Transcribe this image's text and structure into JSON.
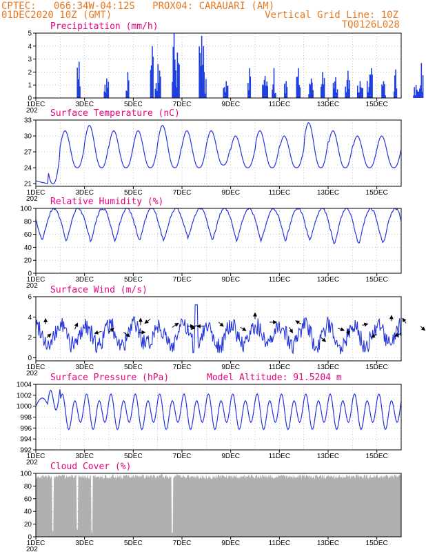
{
  "header": {
    "line1_left": "CPTEC:   066:34W-04:12S   PROX04: CARAUARI (AM)",
    "line2_left": "01DEC2020 10Z (GMT)",
    "line2_right": "Vertical Grid Line: 10Z",
    "line3_right": "TQ0126L028"
  },
  "colors": {
    "header": "#e8781e",
    "title": "#e6007e",
    "line": "#2233dd",
    "bar": "#1f3fe0",
    "cloud": "#b0b0b0"
  },
  "x_axis": {
    "start": "01DEC2020 10Z",
    "end": "16DEC2020 10Z",
    "tick_labels": [
      "1DEC",
      "3DEC",
      "5DEC",
      "7DEC",
      "9DEC",
      "11DEC",
      "13DEC",
      "15DEC"
    ],
    "year_fragment": "202"
  },
  "chart_data": [
    {
      "type": "bar",
      "title": "Precipitation (mm/h)",
      "ylim": [
        0,
        5
      ],
      "yticks": [
        "0",
        "1",
        "2",
        "3",
        "4",
        "5"
      ],
      "grid": true,
      "peaks": [
        {
          "day": 1.8,
          "value": 2.8
        },
        {
          "day": 2.9,
          "value": 1.5
        },
        {
          "day": 3.8,
          "value": 2.0
        },
        {
          "day": 4.8,
          "value": 4.0
        },
        {
          "day": 5.0,
          "value": 2.6
        },
        {
          "day": 5.7,
          "value": 5.0
        },
        {
          "day": 5.8,
          "value": 3.5
        },
        {
          "day": 6.8,
          "value": 4.8
        },
        {
          "day": 6.9,
          "value": 2.0
        },
        {
          "day": 7.8,
          "value": 1.3
        },
        {
          "day": 8.8,
          "value": 2.3
        },
        {
          "day": 9.4,
          "value": 1.7
        },
        {
          "day": 9.8,
          "value": 2.3
        },
        {
          "day": 10.3,
          "value": 1.3
        },
        {
          "day": 10.8,
          "value": 2.3
        },
        {
          "day": 11.3,
          "value": 1.5
        },
        {
          "day": 11.8,
          "value": 2.0
        },
        {
          "day": 12.3,
          "value": 1.6
        },
        {
          "day": 12.8,
          "value": 2.1
        },
        {
          "day": 13.3,
          "value": 1.3
        },
        {
          "day": 13.7,
          "value": 1.8
        },
        {
          "day": 13.8,
          "value": 2.3
        },
        {
          "day": 14.3,
          "value": 1.3
        },
        {
          "day": 14.8,
          "value": 2.2
        },
        {
          "day": 15.6,
          "value": 1.0
        },
        {
          "day": 15.85,
          "value": 2.7
        }
      ]
    },
    {
      "type": "line",
      "title": "Surface Temperature (nC)",
      "ylim": [
        20.5,
        33
      ],
      "yticks": [
        "21",
        "24",
        "27",
        "30",
        "33"
      ],
      "grid": true,
      "minima": [
        21.0,
        24.0,
        24.0,
        24.0,
        24.0,
        24.0,
        24.0,
        24.5,
        24.0,
        24.0,
        24.0,
        24.0,
        24.0,
        24.0,
        24.0
      ],
      "maxima": [
        31.0,
        31.0,
        32.0,
        31.0,
        31.0,
        32.0,
        31.0,
        31.0,
        30.0,
        31.0,
        30.0,
        32.5,
        31.0,
        30.0,
        30.0
      ]
    },
    {
      "type": "line",
      "title": "Relative Humidity (%)",
      "ylim": [
        0,
        100
      ],
      "yticks": [
        "0",
        "20",
        "40",
        "60",
        "80",
        "100"
      ],
      "grid": true,
      "minima": [
        50,
        50,
        50,
        50,
        50,
        50,
        55,
        50,
        50,
        50,
        50,
        50,
        45,
        45,
        45
      ]
    },
    {
      "type": "line",
      "title": "Surface Wind (m/s)",
      "ylim": [
        -0.3,
        6
      ],
      "yticks": [
        "0",
        "2",
        "4",
        "6"
      ],
      "grid": true,
      "peak": {
        "day": 6.6,
        "value": 5.2
      },
      "arrows": [
        {
          "day": 0.45,
          "value": 2.0,
          "dx": 6,
          "dy": -5
        },
        {
          "day": 0.4,
          "value": 3.3,
          "dx": 0,
          "dy": -8
        },
        {
          "day": 1.6,
          "value": 2.8,
          "dx": 4,
          "dy": -9
        },
        {
          "day": 2.7,
          "value": 2.6,
          "dx": -10,
          "dy": 3
        },
        {
          "day": 3.0,
          "value": 2.5,
          "dx": 7,
          "dy": -6
        },
        {
          "day": 3.6,
          "value": 2.5,
          "dx": 9,
          "dy": 6
        },
        {
          "day": 4.2,
          "value": 2.5,
          "dx": 10,
          "dy": 0
        },
        {
          "day": 4.3,
          "value": 3.2,
          "dx": 0,
          "dy": -10
        },
        {
          "day": 4.7,
          "value": 3.8,
          "dx": -8,
          "dy": 6
        },
        {
          "day": 5.6,
          "value": 3.0,
          "dx": 9,
          "dy": -6
        },
        {
          "day": 6.2,
          "value": 3.1,
          "dx": 10,
          "dy": 0
        },
        {
          "day": 6.6,
          "value": 3.2,
          "dx": -8,
          "dy": 6
        },
        {
          "day": 6.9,
          "value": 3.1,
          "dx": -10,
          "dy": 0
        },
        {
          "day": 7.5,
          "value": 3.5,
          "dx": 7,
          "dy": 6
        },
        {
          "day": 8.4,
          "value": 3.0,
          "dx": 8,
          "dy": 5
        },
        {
          "day": 9.0,
          "value": 3.8,
          "dx": 0,
          "dy": -9
        },
        {
          "day": 9.6,
          "value": 3.5,
          "dx": 10,
          "dy": 0
        },
        {
          "day": 10.4,
          "value": 3.0,
          "dx": 5,
          "dy": 8
        },
        {
          "day": 10.9,
          "value": 3.3,
          "dx": -8,
          "dy": -5
        },
        {
          "day": 11.7,
          "value": 2.0,
          "dx": 7,
          "dy": 6
        },
        {
          "day": 12.4,
          "value": 2.9,
          "dx": 9,
          "dy": 3
        },
        {
          "day": 12.8,
          "value": 2.8,
          "dx": 2,
          "dy": 8
        },
        {
          "day": 13.4,
          "value": 3.2,
          "dx": 8,
          "dy": -2
        },
        {
          "day": 14.0,
          "value": 2.3,
          "dx": -8,
          "dy": 4
        },
        {
          "day": 14.6,
          "value": 3.6,
          "dx": 0,
          "dy": -8
        },
        {
          "day": 15.0,
          "value": 2.4,
          "dx": -9,
          "dy": 4
        },
        {
          "day": 15.2,
          "value": 3.4,
          "dx": -5,
          "dy": -7
        },
        {
          "day": 15.8,
          "value": 3.1,
          "dx": 6,
          "dy": 6
        }
      ]
    },
    {
      "type": "line",
      "title": "Surface Pressure (hPa)",
      "annotation": "Model Altitude: 91.5204  m",
      "ylim": [
        992,
        1004
      ],
      "yticks": [
        "992",
        "994",
        "996",
        "998",
        "1000",
        "1002",
        "1004"
      ],
      "grid": true
    },
    {
      "type": "area",
      "title": "Cloud Cover (%)",
      "ylim": [
        0,
        100
      ],
      "yticks": [
        "0",
        "20",
        "40",
        "60",
        "80",
        "100"
      ],
      "grid": true,
      "typical_value": 95,
      "clear_gaps": [
        0.7,
        1.7,
        2.3,
        5.6
      ]
    }
  ]
}
